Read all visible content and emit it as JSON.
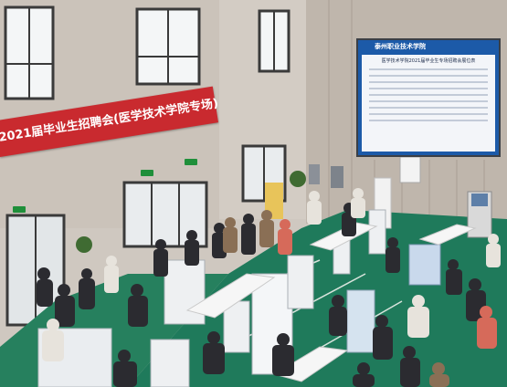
{
  "scene": {
    "banner_text": "2021届毕业生招聘会(医学技术学院专场)",
    "screen_header_text": "泰州职业技术学院",
    "screen_title_text": "医学技术学院2021届毕业生专场招聘会展位表"
  },
  "colors": {
    "wall": "#cbc4bc",
    "floor": "#1e7a5a",
    "banner": "#c92a2f",
    "screen_frame": "#1c5aa8"
  }
}
